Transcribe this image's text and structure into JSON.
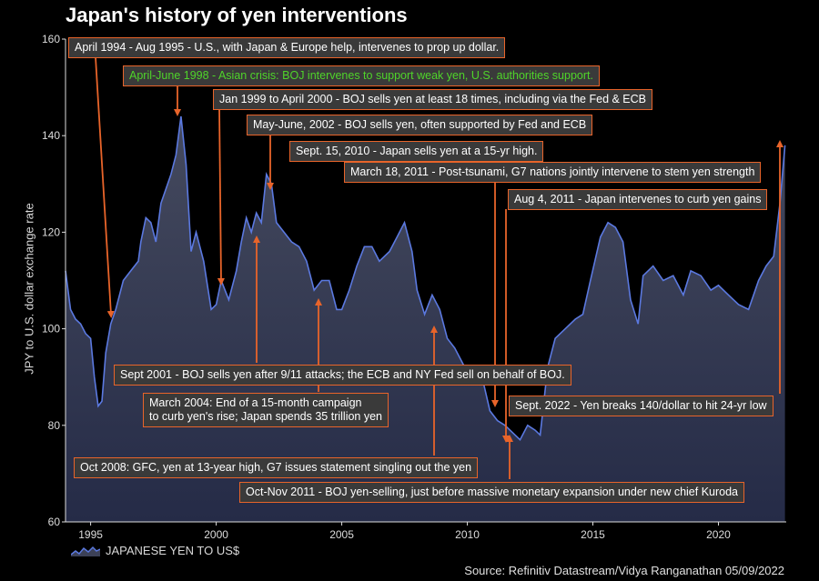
{
  "title": "Japan's history of yen interventions",
  "source": "Source: Refinitiv Datastream/Vidya Ranganathan 05/09/2022",
  "colors": {
    "line": "#5b79e0",
    "fill": "#3c4157",
    "annotation_border": "#e8642a",
    "annotation_bg": "#3a3a3a",
    "green_text": "#4fd42a"
  },
  "chart_data": {
    "type": "area",
    "ylabel": "JPY to U.S. dollar exchange rate",
    "ylim": [
      60,
      160
    ],
    "xlim": [
      1994,
      2022.7
    ],
    "y_ticks": [
      "60",
      "80",
      "100",
      "120",
      "140",
      "160"
    ],
    "x_ticks": [
      "1995",
      "2000",
      "2005",
      "2010",
      "2015",
      "2020"
    ],
    "grid": false,
    "legend": "bottom-left",
    "series": [
      {
        "name": "JAPANESE YEN TO US$",
        "x": [
          1994.0,
          1994.2,
          1994.4,
          1994.6,
          1994.8,
          1995.0,
          1995.15,
          1995.3,
          1995.45,
          1995.6,
          1995.8,
          1996.0,
          1996.3,
          1996.6,
          1996.9,
          1997.0,
          1997.2,
          1997.4,
          1997.6,
          1997.8,
          1998.0,
          1998.2,
          1998.4,
          1998.6,
          1998.8,
          1999.0,
          1999.2,
          1999.5,
          1999.8,
          2000.0,
          2000.2,
          2000.5,
          2000.8,
          2001.0,
          2001.2,
          2001.4,
          2001.6,
          2001.8,
          2002.0,
          2002.2,
          2002.4,
          2002.7,
          2003.0,
          2003.3,
          2003.6,
          2003.9,
          2004.2,
          2004.5,
          2004.8,
          2005.0,
          2005.3,
          2005.6,
          2005.9,
          2006.2,
          2006.5,
          2006.9,
          2007.2,
          2007.5,
          2007.8,
          2008.0,
          2008.3,
          2008.6,
          2008.9,
          2009.2,
          2009.5,
          2009.9,
          2010.2,
          2010.5,
          2010.9,
          2011.2,
          2011.5,
          2011.9,
          2012.1,
          2012.4,
          2012.7,
          2012.9,
          2013.2,
          2013.5,
          2013.9,
          2014.3,
          2014.6,
          2014.9,
          2015.3,
          2015.6,
          2015.9,
          2016.2,
          2016.5,
          2016.8,
          2017.0,
          2017.4,
          2017.8,
          2018.2,
          2018.6,
          2018.9,
          2019.3,
          2019.7,
          2020.0,
          2020.4,
          2020.8,
          2021.2,
          2021.6,
          2021.9,
          2022.2,
          2022.45,
          2022.65
        ],
        "values": [
          112,
          104,
          102,
          101,
          99,
          98,
          90,
          84,
          85,
          95,
          101,
          104,
          110,
          112,
          114,
          118,
          123,
          122,
          118,
          126,
          129,
          132,
          136,
          144,
          134,
          116,
          120,
          114,
          104,
          105,
          110,
          106,
          112,
          118,
          123,
          120,
          124,
          122,
          132,
          130,
          122,
          120,
          118,
          117,
          114,
          108,
          110,
          110,
          104,
          104,
          108,
          113,
          117,
          117,
          114,
          116,
          119,
          122,
          116,
          108,
          103,
          107,
          104,
          98,
          96,
          92,
          90,
          92,
          83,
          81,
          80,
          78,
          77,
          80,
          79,
          78,
          92,
          98,
          100,
          102,
          103,
          110,
          119,
          122,
          121,
          118,
          106,
          101,
          111,
          113,
          110,
          111,
          107,
          112,
          111,
          108,
          109,
          107,
          105,
          104,
          110,
          113,
          115,
          126,
          138
        ]
      }
    ],
    "annotations": [
      "April 1994 - Aug 1995 - U.S., with Japan & Europe help, intervenes to prop up dollar.",
      "April-June 1998 - Asian crisis: BOJ intervenes to support weak yen, U.S. authorities support.",
      "Jan 1999 to April 2000 - BOJ sells yen at least 18 times, including via the Fed & ECB",
      "May-June, 2002 - BOJ sells yen, often supported by Fed and ECB",
      "Sept. 15, 2010 - Japan sells yen at a 15-yr high.",
      "March 18, 2011 - Post-tsunami, G7 nations jointly intervene to stem yen strength",
      "Aug 4, 2011 - Japan intervenes to curb yen gains",
      "Sept 2001 - BOJ sells yen after 9/11 attacks; the ECB and NY Fed sell on behalf of BOJ.",
      "March 2004: End of a 15-month campaign",
      "to curb yen's rise; Japan spends 35 trillion yen",
      "Sept. 2022 - Yen breaks 140/dollar to hit 24-yr low",
      "Oct 2008: GFC, yen at 13-year high, G7 issues statement singling out the yen",
      "Oct-Nov 2011 - BOJ yen-selling, just before massive monetary expansion under new chief Kuroda"
    ]
  }
}
